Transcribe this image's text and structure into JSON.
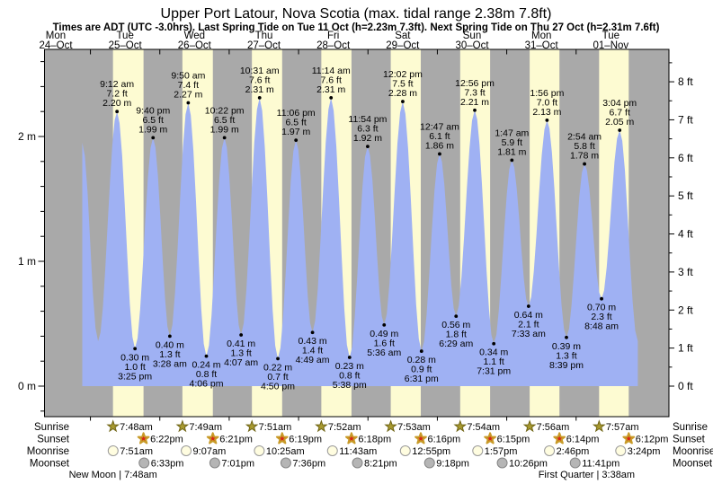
{
  "header": {
    "title": "Upper Port Latour, Nova Scotia (max. tidal range 2.38m 7.8ft)",
    "subtitle": "Times are ADT (UTC -3.0hrs). Last Spring Tide on Tue 11 Oct (h=2.23m 7.3ft). Next Spring Tide on Thu 27 Oct (h=2.31m 7.6ft)"
  },
  "colors": {
    "night_band": "#a9a9a9",
    "day_band": "#fdfbd2",
    "tide_fill": "#9fb1f3",
    "label_red": "#e43333",
    "text": "#000000",
    "sunrise_star": "#a89a30",
    "sunset_star_center": "#d92414",
    "sunset_star_rim": "#c89b28",
    "moonrise_circle": "#fffde0",
    "moonset_circle": "#b5b5b5"
  },
  "chart_data": {
    "type": "area",
    "title": "Tide height curve",
    "xlabel": "days (Mon 24-Oct to Tue 01-Nov)",
    "ylabel_left": "m",
    "ylabel_right": "ft",
    "ylim_m": [
      0,
      2.69
    ],
    "grid": false,
    "legend_position": "none",
    "x_axis": {
      "days": [
        {
          "name": "Mon",
          "date": "24–Oct"
        },
        {
          "name": "Tue",
          "date": "25–Oct"
        },
        {
          "name": "Wed",
          "date": "26–Oct"
        },
        {
          "name": "Thu",
          "date": "27–Oct"
        },
        {
          "name": "Fri",
          "date": "28–Oct"
        },
        {
          "name": "Sat",
          "date": "29–Oct"
        },
        {
          "name": "Sun",
          "date": "30–Oct"
        },
        {
          "name": "Mon",
          "date": "31–Oct"
        },
        {
          "name": "Tue",
          "date": "01–Nov"
        }
      ]
    },
    "y_axis_left": {
      "unit": "m",
      "major_ticks": [
        0,
        1,
        2
      ],
      "minor_step": 0.2
    },
    "y_axis_right": {
      "unit": "ft",
      "major_ticks": [
        0,
        1,
        2,
        3,
        4,
        5,
        6,
        7,
        8
      ],
      "minor_step": 0.5
    },
    "tides": [
      {
        "day": 0,
        "time": "9:10 pm",
        "height_m": "1.95",
        "height_ft": "6.4",
        "type": "high",
        "annotated": false
      },
      {
        "day": 1,
        "time": "2:40 am",
        "height_m": "0.36",
        "height_ft": "1.2",
        "type": "low",
        "annotated": false
      },
      {
        "day": 1,
        "time": "9:12 am",
        "height_m": "2.20",
        "height_ft": "7.2",
        "type": "high",
        "annotated": true
      },
      {
        "day": 1,
        "time": "3:25 pm",
        "height_m": "0.30",
        "height_ft": "1.0",
        "type": "low",
        "annotated": true
      },
      {
        "day": 1,
        "time": "9:40 pm",
        "height_m": "1.99",
        "height_ft": "6.5",
        "type": "high",
        "annotated": true
      },
      {
        "day": 2,
        "time": "3:28 am",
        "height_m": "0.40",
        "height_ft": "1.3",
        "type": "low",
        "annotated": true
      },
      {
        "day": 2,
        "time": "9:50 am",
        "height_m": "2.27",
        "height_ft": "7.4",
        "type": "high",
        "annotated": true
      },
      {
        "day": 2,
        "time": "4:06 pm",
        "height_m": "0.24",
        "height_ft": "0.8",
        "type": "low",
        "annotated": true
      },
      {
        "day": 2,
        "time": "10:22 pm",
        "height_m": "1.99",
        "height_ft": "6.5",
        "type": "high",
        "annotated": true
      },
      {
        "day": 3,
        "time": "4:07 am",
        "height_m": "0.41",
        "height_ft": "1.3",
        "type": "low",
        "annotated": true
      },
      {
        "day": 3,
        "time": "10:31 am",
        "height_m": "2.31",
        "height_ft": "7.6",
        "type": "high",
        "annotated": true
      },
      {
        "day": 3,
        "time": "4:50 pm",
        "height_m": "0.22",
        "height_ft": "0.7",
        "type": "low",
        "annotated": true
      },
      {
        "day": 3,
        "time": "11:06 pm",
        "height_m": "1.97",
        "height_ft": "6.5",
        "type": "high",
        "annotated": true
      },
      {
        "day": 4,
        "time": "4:49 am",
        "height_m": "0.43",
        "height_ft": "1.4",
        "type": "low",
        "annotated": true
      },
      {
        "day": 4,
        "time": "11:14 am",
        "height_m": "2.31",
        "height_ft": "7.6",
        "type": "high",
        "annotated": true
      },
      {
        "day": 4,
        "time": "5:38 pm",
        "height_m": "0.23",
        "height_ft": "0.8",
        "type": "low",
        "annotated": true
      },
      {
        "day": 4,
        "time": "11:54 pm",
        "height_m": "1.92",
        "height_ft": "6.3",
        "type": "high",
        "annotated": true
      },
      {
        "day": 5,
        "time": "5:36 am",
        "height_m": "0.49",
        "height_ft": "1.6",
        "type": "low",
        "annotated": true
      },
      {
        "day": 5,
        "time": "12:02 pm",
        "height_m": "2.28",
        "height_ft": "7.5",
        "type": "high",
        "annotated": true
      },
      {
        "day": 5,
        "time": "6:31 pm",
        "height_m": "0.28",
        "height_ft": "0.9",
        "type": "low",
        "annotated": true
      },
      {
        "day": 6,
        "time": "12:47 am",
        "height_m": "1.86",
        "height_ft": "6.1",
        "type": "high",
        "annotated": true
      },
      {
        "day": 6,
        "time": "6:29 am",
        "height_m": "0.56",
        "height_ft": "1.8",
        "type": "low",
        "annotated": true
      },
      {
        "day": 6,
        "time": "12:56 pm",
        "height_m": "2.21",
        "height_ft": "7.3",
        "type": "high",
        "annotated": true
      },
      {
        "day": 6,
        "time": "7:31 pm",
        "height_m": "0.34",
        "height_ft": "1.1",
        "type": "low",
        "annotated": true
      },
      {
        "day": 7,
        "time": "1:47 am",
        "height_m": "1.81",
        "height_ft": "5.9",
        "type": "high",
        "annotated": true
      },
      {
        "day": 7,
        "time": "7:33 am",
        "height_m": "0.64",
        "height_ft": "2.1",
        "type": "low",
        "annotated": true
      },
      {
        "day": 7,
        "time": "1:56 pm",
        "height_m": "2.13",
        "height_ft": "7.0",
        "type": "high",
        "annotated": true
      },
      {
        "day": 7,
        "time": "8:39 pm",
        "height_m": "0.39",
        "height_ft": "1.3",
        "type": "low",
        "annotated": true
      },
      {
        "day": 8,
        "time": "2:54 am",
        "height_m": "1.78",
        "height_ft": "5.8",
        "type": "high",
        "annotated": true
      },
      {
        "day": 8,
        "time": "8:48 am",
        "height_m": "0.70",
        "height_ft": "2.3",
        "type": "low",
        "annotated": true
      },
      {
        "day": 8,
        "time": "3:04 pm",
        "height_m": "2.05",
        "height_ft": "6.7",
        "type": "high",
        "annotated": true
      },
      {
        "day": 8,
        "time": "9:20 pm",
        "height_m": "0.36",
        "height_ft": "1.2",
        "type": "low",
        "annotated": false
      }
    ]
  },
  "legend": {
    "rows": [
      {
        "label": "Sunrise",
        "icon": "sunrise-star",
        "first_day": 1,
        "times": [
          "7:48am",
          "7:49am",
          "7:51am",
          "7:52am",
          "7:53am",
          "7:54am",
          "7:56am",
          "7:57am"
        ]
      },
      {
        "label": "Sunset",
        "icon": "sunset-star",
        "first_day": 1,
        "times": [
          "6:22pm",
          "6:21pm",
          "6:19pm",
          "6:18pm",
          "6:16pm",
          "6:15pm",
          "6:14pm",
          "6:12pm"
        ]
      },
      {
        "label": "Moonrise",
        "icon": "moonrise-circle",
        "first_day": 1,
        "times": [
          "7:51am",
          "9:07am",
          "10:25am",
          "11:43am",
          "12:55pm",
          "1:57pm",
          "2:46pm",
          "3:24pm"
        ]
      },
      {
        "label": "Moonset",
        "icon": "moonset-circle",
        "first_day": 1,
        "times": [
          "6:33pm",
          "7:01pm",
          "7:36pm",
          "8:21pm",
          "9:18pm",
          "10:26pm",
          "11:41pm"
        ]
      }
    ],
    "phases": [
      {
        "text": "New Moon | 7:48am",
        "day": 1,
        "time": "7:48am"
      },
      {
        "text": "First Quarter | 3:38am",
        "day": 8,
        "time": "3:38am"
      }
    ]
  }
}
